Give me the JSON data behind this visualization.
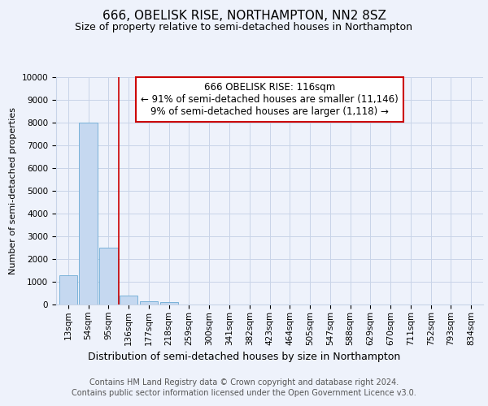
{
  "title": "666, OBELISK RISE, NORTHAMPTON, NN2 8SZ",
  "subtitle": "Size of property relative to semi-detached houses in Northampton",
  "xlabel": "Distribution of semi-detached houses by size in Northampton",
  "ylabel": "Number of semi-detached properties",
  "footer_line1": "Contains HM Land Registry data © Crown copyright and database right 2024.",
  "footer_line2": "Contains public sector information licensed under the Open Government Licence v3.0.",
  "annotation_line1": "666 OBELISK RISE: 116sqm",
  "annotation_line2": "← 91% of semi-detached houses are smaller (11,146)",
  "annotation_line3": "9% of semi-detached houses are larger (1,118) →",
  "bar_labels": [
    "13sqm",
    "54sqm",
    "95sqm",
    "136sqm",
    "177sqm",
    "218sqm",
    "259sqm",
    "300sqm",
    "341sqm",
    "382sqm",
    "423sqm",
    "464sqm",
    "505sqm",
    "547sqm",
    "588sqm",
    "629sqm",
    "670sqm",
    "711sqm",
    "752sqm",
    "793sqm",
    "834sqm"
  ],
  "bar_values": [
    1300,
    8000,
    2500,
    400,
    150,
    100,
    0,
    0,
    0,
    0,
    0,
    0,
    0,
    0,
    0,
    0,
    0,
    0,
    0,
    0,
    0
  ],
  "bar_color": "#c5d8f0",
  "bar_edgecolor": "#6aaad4",
  "vline_x": 2.5,
  "vline_color": "#cc0000",
  "ylim": [
    0,
    10000
  ],
  "yticks": [
    0,
    1000,
    2000,
    3000,
    4000,
    5000,
    6000,
    7000,
    8000,
    9000,
    10000
  ],
  "grid_color": "#c8d4e8",
  "annotation_box_edgecolor": "#cc0000",
  "annotation_box_facecolor": "#ffffff",
  "background_color": "#eef2fb",
  "title_fontsize": 11,
  "subtitle_fontsize": 9,
  "xlabel_fontsize": 9,
  "ylabel_fontsize": 8,
  "tick_fontsize": 7.5,
  "annotation_fontsize": 8.5,
  "footer_fontsize": 7
}
